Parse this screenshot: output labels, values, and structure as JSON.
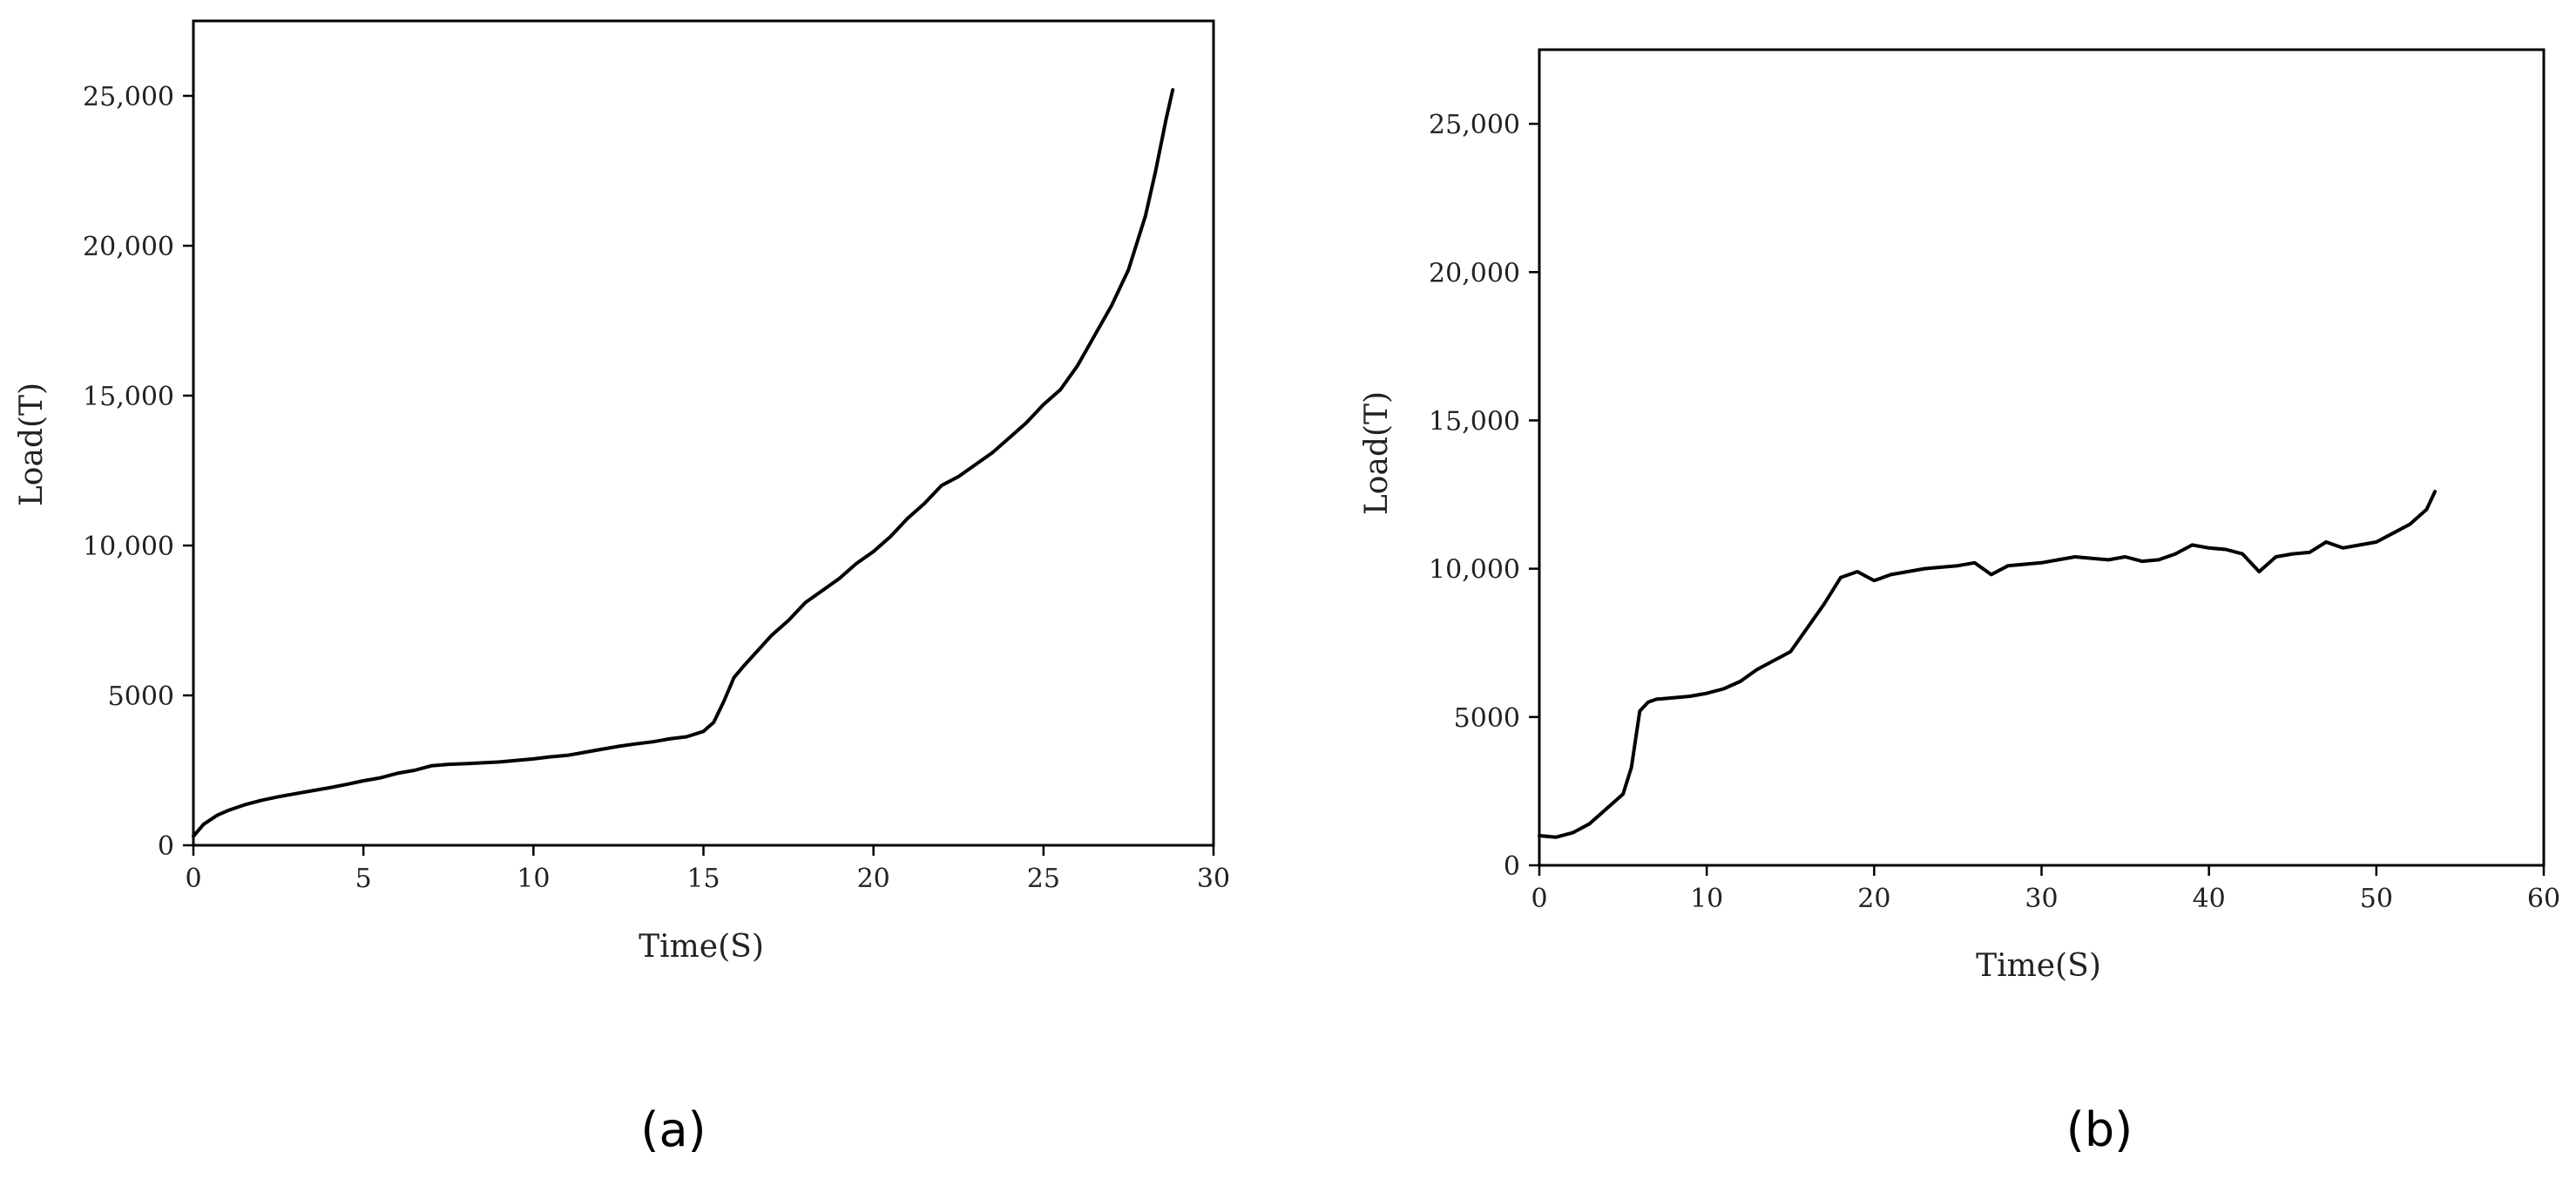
{
  "chart_data": [
    {
      "type": "line",
      "panel_label": "(a)",
      "xlabel": "Time(S)",
      "ylabel": "Load(T)",
      "xlim": [
        0,
        30
      ],
      "ylim": [
        0,
        27500
      ],
      "xticks": [
        0,
        5,
        10,
        15,
        20,
        25,
        30
      ],
      "xtick_labels": [
        "0",
        "5",
        "10",
        "15",
        "20",
        "25",
        "30"
      ],
      "yticks": [
        0,
        5000,
        10000,
        15000,
        20000,
        25000
      ],
      "ytick_labels": [
        "0",
        "5000",
        "10,000",
        "15,000",
        "20,000",
        "25,000"
      ],
      "grid": false,
      "series": [
        {
          "x": [
            0,
            0.3,
            0.7,
            1,
            1.5,
            2,
            2.5,
            3,
            3.5,
            4,
            4.5,
            5,
            5.5,
            6,
            6.5,
            7,
            7.5,
            8,
            8.5,
            9,
            9.5,
            10,
            10.5,
            11,
            11.5,
            12,
            12.5,
            13,
            13.5,
            14,
            14.5,
            15,
            15.3,
            15.6,
            15.9,
            16.2,
            16.6,
            17,
            17.5,
            18,
            18.5,
            19,
            19.5,
            20,
            20.5,
            21,
            21.5,
            22,
            22.5,
            23,
            23.5,
            24,
            24.5,
            25,
            25.5,
            26,
            26.5,
            27,
            27.5,
            28,
            28.3,
            28.6,
            28.8
          ],
          "y": [
            300,
            700,
            1000,
            1150,
            1350,
            1500,
            1620,
            1720,
            1820,
            1920,
            2030,
            2150,
            2250,
            2400,
            2500,
            2650,
            2700,
            2720,
            2750,
            2780,
            2830,
            2880,
            2950,
            3000,
            3100,
            3200,
            3300,
            3380,
            3450,
            3550,
            3620,
            3800,
            4100,
            4800,
            5600,
            6000,
            6500,
            7000,
            7500,
            8100,
            8500,
            8900,
            9400,
            9800,
            10300,
            10900,
            11400,
            12000,
            12300,
            12700,
            13100,
            13600,
            14100,
            14700,
            15200,
            16000,
            17000,
            18000,
            19200,
            21000,
            22500,
            24200,
            25200
          ]
        }
      ]
    },
    {
      "type": "line",
      "panel_label": "(b)",
      "xlabel": "Time(S)",
      "ylabel": "Load(T)",
      "xlim": [
        0,
        60
      ],
      "ylim": [
        0,
        27500
      ],
      "xticks": [
        0,
        10,
        20,
        30,
        40,
        50,
        60
      ],
      "xtick_labels": [
        "0",
        "10",
        "20",
        "30",
        "40",
        "50",
        "60"
      ],
      "yticks": [
        0,
        5000,
        10000,
        15000,
        20000,
        25000
      ],
      "ytick_labels": [
        "0",
        "5000",
        "10,000",
        "15,000",
        "20,000",
        "25,000"
      ],
      "grid": false,
      "series": [
        {
          "x": [
            0,
            1,
            2,
            3,
            4,
            5,
            5.5,
            6,
            6.5,
            7,
            8,
            9,
            10,
            11,
            12,
            13,
            14,
            15,
            16,
            17,
            18,
            19,
            20,
            21,
            22,
            23,
            24,
            25,
            26,
            27,
            28,
            29,
            30,
            31,
            32,
            33,
            34,
            35,
            36,
            37,
            38,
            39,
            40,
            41,
            42,
            43,
            44,
            45,
            46,
            47,
            48,
            49,
            50,
            51,
            52,
            53,
            53.5
          ],
          "y": [
            1000,
            950,
            1100,
            1400,
            1900,
            2400,
            3300,
            5200,
            5500,
            5600,
            5650,
            5700,
            5800,
            5950,
            6200,
            6600,
            6900,
            7200,
            8000,
            8800,
            9700,
            9900,
            9600,
            9800,
            9900,
            10000,
            10050,
            10100,
            10200,
            9800,
            10100,
            10150,
            10200,
            10300,
            10400,
            10350,
            10300,
            10400,
            10250,
            10300,
            10500,
            10800,
            10700,
            10650,
            10500,
            9900,
            10400,
            10500,
            10550,
            10900,
            10700,
            10800,
            10900,
            11200,
            11500,
            12000,
            12600
          ]
        }
      ]
    }
  ]
}
